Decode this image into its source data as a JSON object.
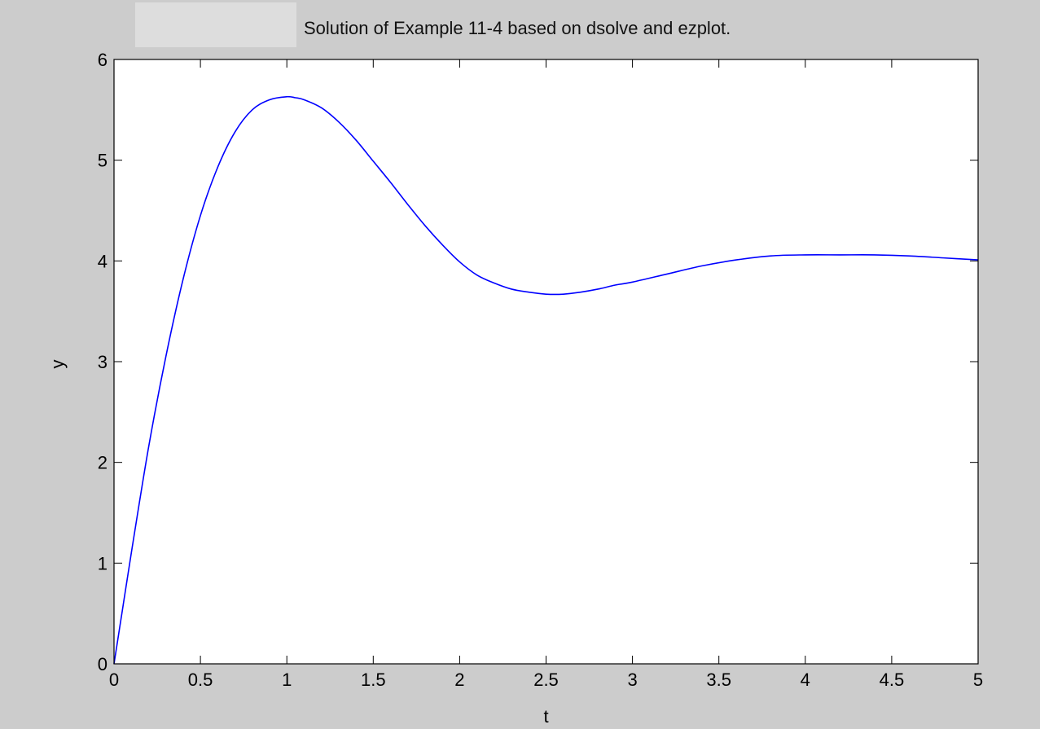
{
  "chart_data": {
    "type": "line",
    "title": "Solution of Example 11-4 based on dsolve and ezplot.",
    "xlabel": "t",
    "ylabel": "y",
    "xlim": [
      0,
      5
    ],
    "ylim": [
      0,
      6
    ],
    "x_ticks": [
      "0",
      "0.5",
      "1",
      "1.5",
      "2",
      "2.5",
      "3",
      "3.5",
      "4",
      "4.5",
      "5"
    ],
    "y_ticks": [
      "0",
      "1",
      "2",
      "3",
      "4",
      "5",
      "6"
    ],
    "grid": false,
    "series": [
      {
        "color": "#0000ff",
        "x": [
          0,
          0.05,
          0.1,
          0.2,
          0.3,
          0.4,
          0.5,
          0.6,
          0.7,
          0.8,
          0.9,
          1.0,
          1.05,
          1.1,
          1.2,
          1.3,
          1.4,
          1.5,
          1.6,
          1.7,
          1.8,
          1.9,
          2.0,
          2.1,
          2.2,
          2.3,
          2.4,
          2.5,
          2.6,
          2.7,
          2.8,
          2.9,
          3.0,
          3.2,
          3.4,
          3.6,
          3.8,
          4.0,
          4.2,
          4.4,
          4.6,
          4.8,
          5.0
        ],
        "y": [
          0,
          0.55,
          1.1,
          2.15,
          3.05,
          3.82,
          4.45,
          4.93,
          5.28,
          5.5,
          5.6,
          5.63,
          5.62,
          5.6,
          5.52,
          5.38,
          5.2,
          4.99,
          4.78,
          4.56,
          4.35,
          4.16,
          3.99,
          3.86,
          3.78,
          3.72,
          3.69,
          3.67,
          3.67,
          3.69,
          3.72,
          3.76,
          3.79,
          3.87,
          3.95,
          4.01,
          4.05,
          4.06,
          4.06,
          4.06,
          4.05,
          4.03,
          4.01
        ]
      }
    ]
  }
}
